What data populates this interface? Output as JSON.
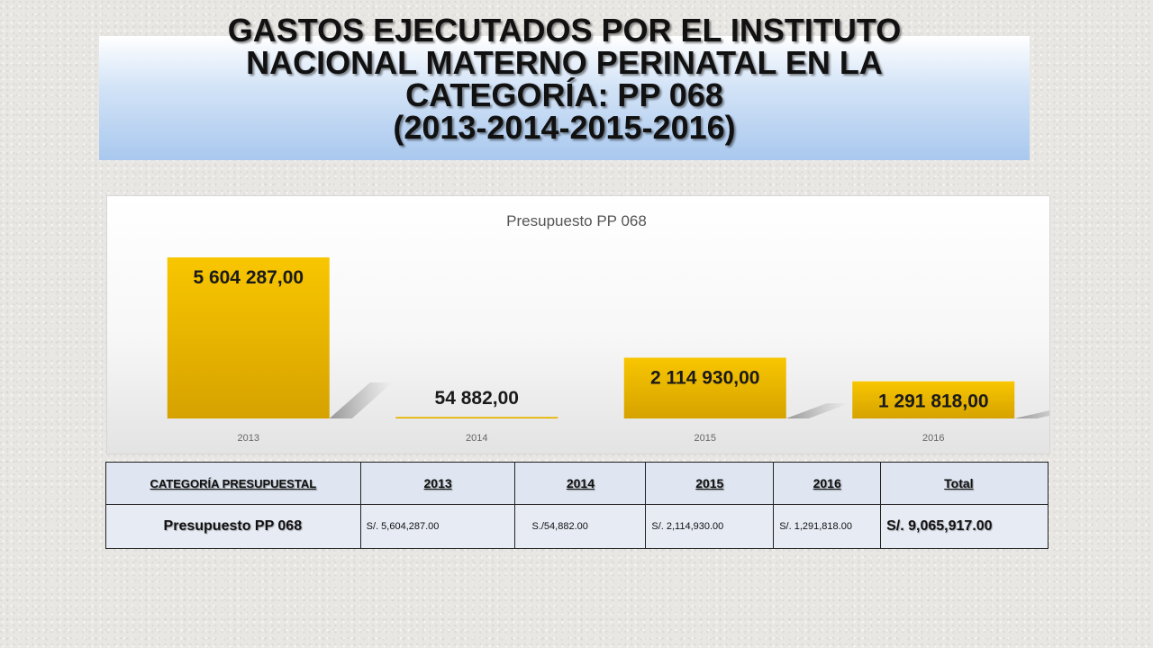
{
  "title_lines": [
    "GASTOS EJECUTADOS POR EL INSTITUTO",
    "NACIONAL MATERNO PERINATAL EN LA",
    "CATEGORÍA: PP 068",
    "(2013-2014-2015-2016)"
  ],
  "colors": {
    "bar_top": "#f7c300",
    "bar_bottom": "#d9a400",
    "title_band": "#a9c8ee"
  },
  "chart_data": {
    "type": "bar",
    "title": "Presupuesto PP 068",
    "categories": [
      "2013",
      "2014",
      "2015",
      "2016"
    ],
    "values": [
      5604287.0,
      54882.0,
      2114930.0,
      1291818.0
    ],
    "data_labels": [
      "5 604 287,00",
      "54 882,00",
      "2 114 930,00",
      "1 291 818,00"
    ],
    "xlabel": "",
    "ylabel": "",
    "grid": false,
    "legend": "none"
  },
  "table": {
    "headers": [
      "CATEGORÍA PRESUPUESTAL",
      "2013",
      "2014",
      "2015",
      "2016",
      "Total"
    ],
    "row": {
      "label": "Presupuesto PP 068",
      "values": [
        "S/. 5,604,287.00",
        "S./54,882.00",
        "S/. 2,114,930.00",
        "S/. 1,291,818.00"
      ],
      "total": "S/. 9,065,917.00"
    }
  }
}
